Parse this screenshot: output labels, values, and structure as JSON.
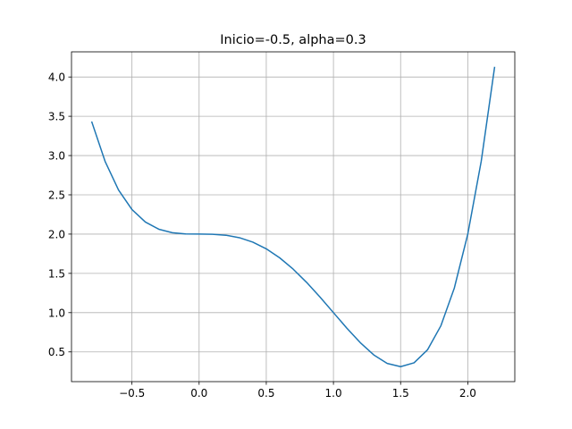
{
  "chart_data": {
    "type": "line",
    "title": "Inicio=-0.5, alpha=0.3",
    "x": [
      -0.8,
      -0.7,
      -0.6,
      -0.5,
      -0.4,
      -0.3,
      -0.2,
      -0.1,
      0,
      0.1,
      0.2,
      0.3,
      0.4,
      0.5,
      0.6,
      0.7,
      0.8,
      0.9,
      1.0,
      1.1,
      1.2,
      1.3,
      1.4,
      1.5,
      1.6,
      1.7,
      1.8,
      1.9,
      2.0,
      2.1,
      2.2
    ],
    "series": [
      {
        "color": "#1f77b4",
        "values": [
          3.4336,
          2.9261,
          2.5616,
          2.3125,
          2.1536,
          2.0621,
          2.0176,
          2.0021,
          2,
          1.9981,
          1.9856,
          1.9541,
          1.8976,
          1.8125,
          1.6976,
          1.5541,
          1.3856,
          1.1981,
          1,
          0.8021,
          0.6176,
          0.4621,
          0.3536,
          0.3125,
          0.3616,
          0.5261,
          0.8336,
          1.3141,
          2,
          2.9261,
          4.1296
        ]
      }
    ],
    "xlim": [
      -0.95,
      2.35
    ],
    "ylim": [
      0.1216,
      4.3205
    ],
    "xticks": [
      {
        "value": -0.5,
        "label": "−0.5"
      },
      {
        "value": 0,
        "label": "0.0"
      },
      {
        "value": 0.5,
        "label": "0.5"
      },
      {
        "value": 1,
        "label": "1.0"
      },
      {
        "value": 1.5,
        "label": "1.5"
      },
      {
        "value": 2,
        "label": "2.0"
      }
    ],
    "yticks": [
      {
        "value": 0.5,
        "label": "0.5"
      },
      {
        "value": 1,
        "label": "1.0"
      },
      {
        "value": 1.5,
        "label": "1.5"
      },
      {
        "value": 2,
        "label": "2.0"
      },
      {
        "value": 2.5,
        "label": "2.5"
      },
      {
        "value": 3,
        "label": "3.0"
      },
      {
        "value": 3.5,
        "label": "3.5"
      },
      {
        "value": 4,
        "label": "4.0"
      }
    ],
    "grid": true
  }
}
